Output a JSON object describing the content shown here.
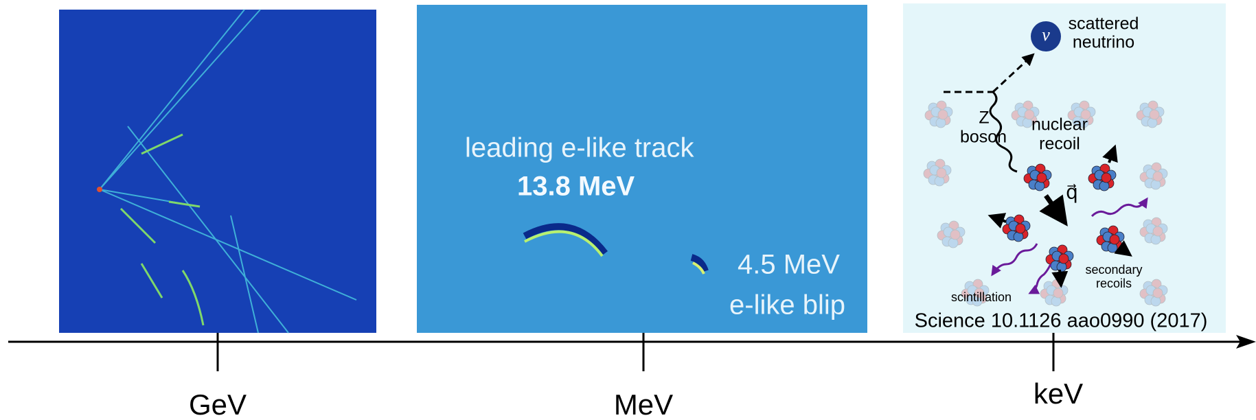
{
  "panels": [
    {
      "texts": []
    },
    {
      "texts": [
        "leading e-like track",
        "13.8 MeV",
        "4.5 MeV",
        "e-like blip"
      ]
    },
    {
      "texts": [
        "ν",
        "scattered",
        "neutrino",
        "Z",
        "boson",
        "nuclear",
        "recoil",
        "q⃗",
        "secondary",
        "recoils",
        "scintillation"
      ],
      "citation": "Science 10.1126 aao0990 (2017)"
    }
  ],
  "axis": {
    "labels": [
      "GeV",
      "MeV",
      "keV"
    ]
  }
}
